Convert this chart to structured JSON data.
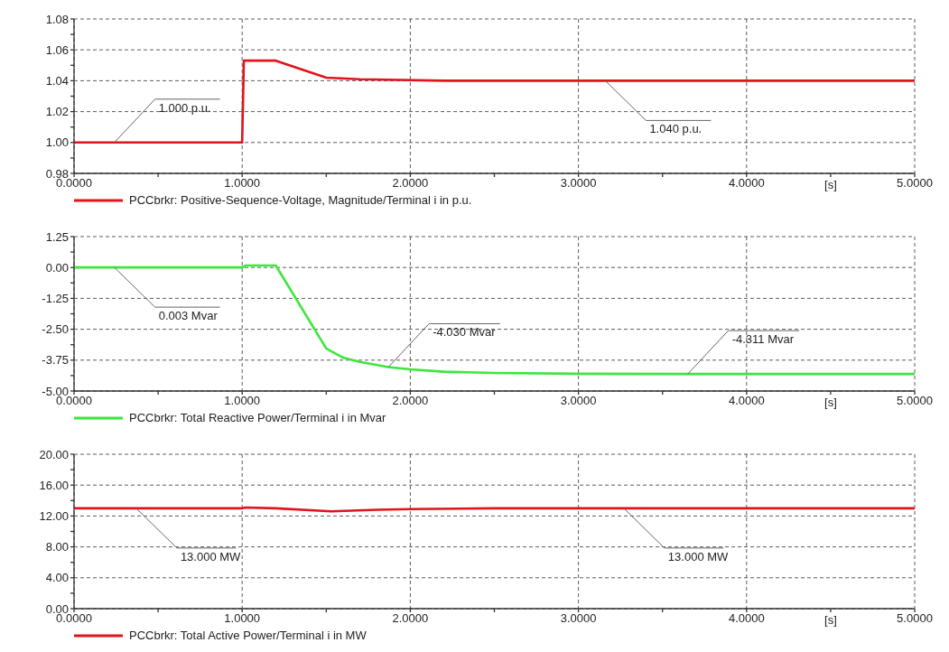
{
  "chart_data": [
    {
      "type": "line",
      "x": [
        0,
        1.0,
        1.01,
        1.2,
        1.5,
        1.7,
        2.2,
        5.0
      ],
      "series": [
        {
          "name": "PCCbrkr: Positive-Sequence-Voltage, Magnitude/Terminal i in p.u.",
          "color": "#e0141b",
          "values": [
            1.0,
            1.0,
            1.053,
            1.053,
            1.042,
            1.041,
            1.04,
            1.04
          ]
        }
      ],
      "xlim": [
        0,
        5
      ],
      "xticks": [
        {
          "value": 0,
          "label": "0.0000"
        },
        {
          "value": 0.5,
          "label": null
        },
        {
          "value": 1,
          "label": "1.0000"
        },
        {
          "value": 1.5,
          "label": null
        },
        {
          "value": 2,
          "label": "2.0000"
        },
        {
          "value": 2.5,
          "label": null
        },
        {
          "value": 3,
          "label": "3.0000"
        },
        {
          "value": 3.5,
          "label": null
        },
        {
          "value": 4,
          "label": "4.0000"
        },
        {
          "value": 4.5,
          "label": null
        },
        {
          "value": 5,
          "label": "5.0000"
        }
      ],
      "ylim": [
        0.98,
        1.08
      ],
      "yticks": [
        {
          "value": 0.98,
          "label": "0.98"
        },
        {
          "value": 0.99,
          "label": null
        },
        {
          "value": 1.0,
          "label": "1.00"
        },
        {
          "value": 1.01,
          "label": null
        },
        {
          "value": 1.02,
          "label": "1.02"
        },
        {
          "value": 1.03,
          "label": null
        },
        {
          "value": 1.04,
          "label": "1.04"
        },
        {
          "value": 1.05,
          "label": null
        },
        {
          "value": 1.06,
          "label": "1.06"
        },
        {
          "value": 1.07,
          "label": null
        },
        {
          "value": 1.08,
          "label": "1.08"
        }
      ],
      "xlabel": "[s]",
      "grid": true,
      "legend": "bottom left",
      "annotations": [
        {
          "text": "1.000 p.u.",
          "x": 0.24,
          "y": 1.0
        },
        {
          "text": "1.040 p.u.",
          "x": 3.16,
          "y": 1.04
        }
      ]
    },
    {
      "type": "line",
      "x": [
        0,
        1.0,
        1.02,
        1.2,
        1.5,
        1.6,
        1.7,
        1.87,
        2.0,
        2.2,
        2.5,
        3.0,
        3.65,
        5.0
      ],
      "series": [
        {
          "name": "PCCbrkr: Total Reactive Power/Terminal i in Mvar",
          "color": "#3de63d",
          "values": [
            0.003,
            0.003,
            0.08,
            0.08,
            -3.28,
            -3.65,
            -3.82,
            -4.03,
            -4.12,
            -4.22,
            -4.27,
            -4.3,
            -4.311,
            -4.311
          ]
        }
      ],
      "xlim": [
        0,
        5
      ],
      "xticks": [
        {
          "value": 0,
          "label": "0.0000"
        },
        {
          "value": 0.5,
          "label": null
        },
        {
          "value": 1,
          "label": "1.0000"
        },
        {
          "value": 1.5,
          "label": null
        },
        {
          "value": 2,
          "label": "2.0000"
        },
        {
          "value": 2.5,
          "label": null
        },
        {
          "value": 3,
          "label": "3.0000"
        },
        {
          "value": 3.5,
          "label": null
        },
        {
          "value": 4,
          "label": "4.0000"
        },
        {
          "value": 4.5,
          "label": null
        },
        {
          "value": 5,
          "label": "5.0000"
        }
      ],
      "ylim": [
        -5,
        1.25
      ],
      "yticks": [
        {
          "value": -5,
          "label": "-5.00"
        },
        {
          "value": -4.375,
          "label": null
        },
        {
          "value": -3.75,
          "label": "-3.75"
        },
        {
          "value": -3.125,
          "label": null
        },
        {
          "value": -2.5,
          "label": "-2.50"
        },
        {
          "value": -1.875,
          "label": null
        },
        {
          "value": -1.25,
          "label": "-1.25"
        },
        {
          "value": -0.625,
          "label": null
        },
        {
          "value": 0,
          "label": "0.00"
        },
        {
          "value": 0.625,
          "label": null
        },
        {
          "value": 1.25,
          "label": "1.25"
        }
      ],
      "xlabel": "[s]",
      "grid": true,
      "legend": "bottom left",
      "annotations": [
        {
          "text": "0.003 Mvar",
          "x": 0.24,
          "y": 0.003
        },
        {
          "text": "-4.030 Mvar",
          "x": 1.87,
          "y": -4.03
        },
        {
          "text": "-4.311 Mvar",
          "x": 3.65,
          "y": -4.311
        }
      ]
    },
    {
      "type": "line",
      "x": [
        0,
        1.0,
        1.02,
        1.2,
        1.53,
        1.8,
        2.0,
        2.5,
        5.0
      ],
      "series": [
        {
          "name": "PCCbrkr: Total Active Power/Terminal i in MW",
          "color": "#e0141b",
          "values": [
            13.0,
            13.0,
            13.1,
            13.0,
            12.6,
            12.8,
            12.9,
            13.0,
            13.0
          ]
        }
      ],
      "xlim": [
        0,
        5
      ],
      "xticks": [
        {
          "value": 0,
          "label": "0.0000"
        },
        {
          "value": 0.5,
          "label": null
        },
        {
          "value": 1,
          "label": "1.0000"
        },
        {
          "value": 1.5,
          "label": null
        },
        {
          "value": 2,
          "label": "2.0000"
        },
        {
          "value": 2.5,
          "label": null
        },
        {
          "value": 3,
          "label": "3.0000"
        },
        {
          "value": 3.5,
          "label": null
        },
        {
          "value": 4,
          "label": "4.0000"
        },
        {
          "value": 4.5,
          "label": null
        },
        {
          "value": 5,
          "label": "5.0000"
        }
      ],
      "ylim": [
        0,
        20
      ],
      "yticks": [
        {
          "value": 0,
          "label": "0.00"
        },
        {
          "value": 2,
          "label": null
        },
        {
          "value": 4,
          "label": "4.00"
        },
        {
          "value": 6,
          "label": null
        },
        {
          "value": 8,
          "label": "8.00"
        },
        {
          "value": 10,
          "label": null
        },
        {
          "value": 12,
          "label": "12.00"
        },
        {
          "value": 14,
          "label": null
        },
        {
          "value": 16,
          "label": "16.00"
        },
        {
          "value": 18,
          "label": null
        },
        {
          "value": 20,
          "label": "20.00"
        }
      ],
      "xlabel": "[s]",
      "grid": true,
      "legend": "bottom left",
      "annotations": [
        {
          "text": "13.000 MW",
          "x": 0.37,
          "y": 13.0
        },
        {
          "text": "13.000 MW",
          "x": 3.27,
          "y": 13.0
        }
      ]
    }
  ]
}
